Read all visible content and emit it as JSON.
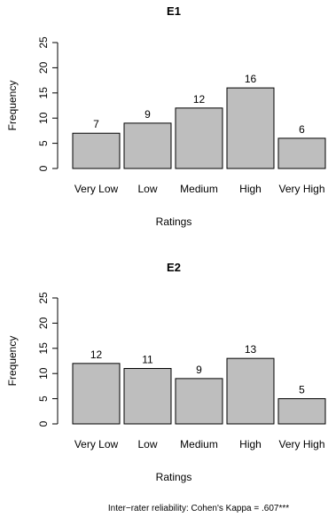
{
  "chart_data": [
    {
      "type": "bar",
      "title": "E1",
      "xlabel": "Ratings",
      "ylabel": "Frequency",
      "categories": [
        "Very Low",
        "Low",
        "Medium",
        "High",
        "Very High"
      ],
      "values": [
        7,
        9,
        12,
        16,
        6
      ],
      "data_labels": [
        "7",
        "9",
        "12",
        "16",
        "6"
      ],
      "ylim": [
        0,
        25
      ],
      "yticks": [
        "0",
        "5",
        "10",
        "15",
        "20",
        "25"
      ],
      "grid": false,
      "bar_color": "#bebebe"
    },
    {
      "type": "bar",
      "title": "E2",
      "xlabel": "Ratings",
      "ylabel": "Frequency",
      "categories": [
        "Very Low",
        "Low",
        "Medium",
        "High",
        "Very High"
      ],
      "values": [
        12,
        11,
        9,
        13,
        5
      ],
      "data_labels": [
        "12",
        "11",
        "9",
        "13",
        "5"
      ],
      "ylim": [
        0,
        25
      ],
      "yticks": [
        "0",
        "5",
        "10",
        "15",
        "20",
        "25"
      ],
      "grid": false,
      "bar_color": "#bebebe"
    }
  ],
  "footnote": "Inter−rater reliability: Cohen's Kappa = .607***"
}
